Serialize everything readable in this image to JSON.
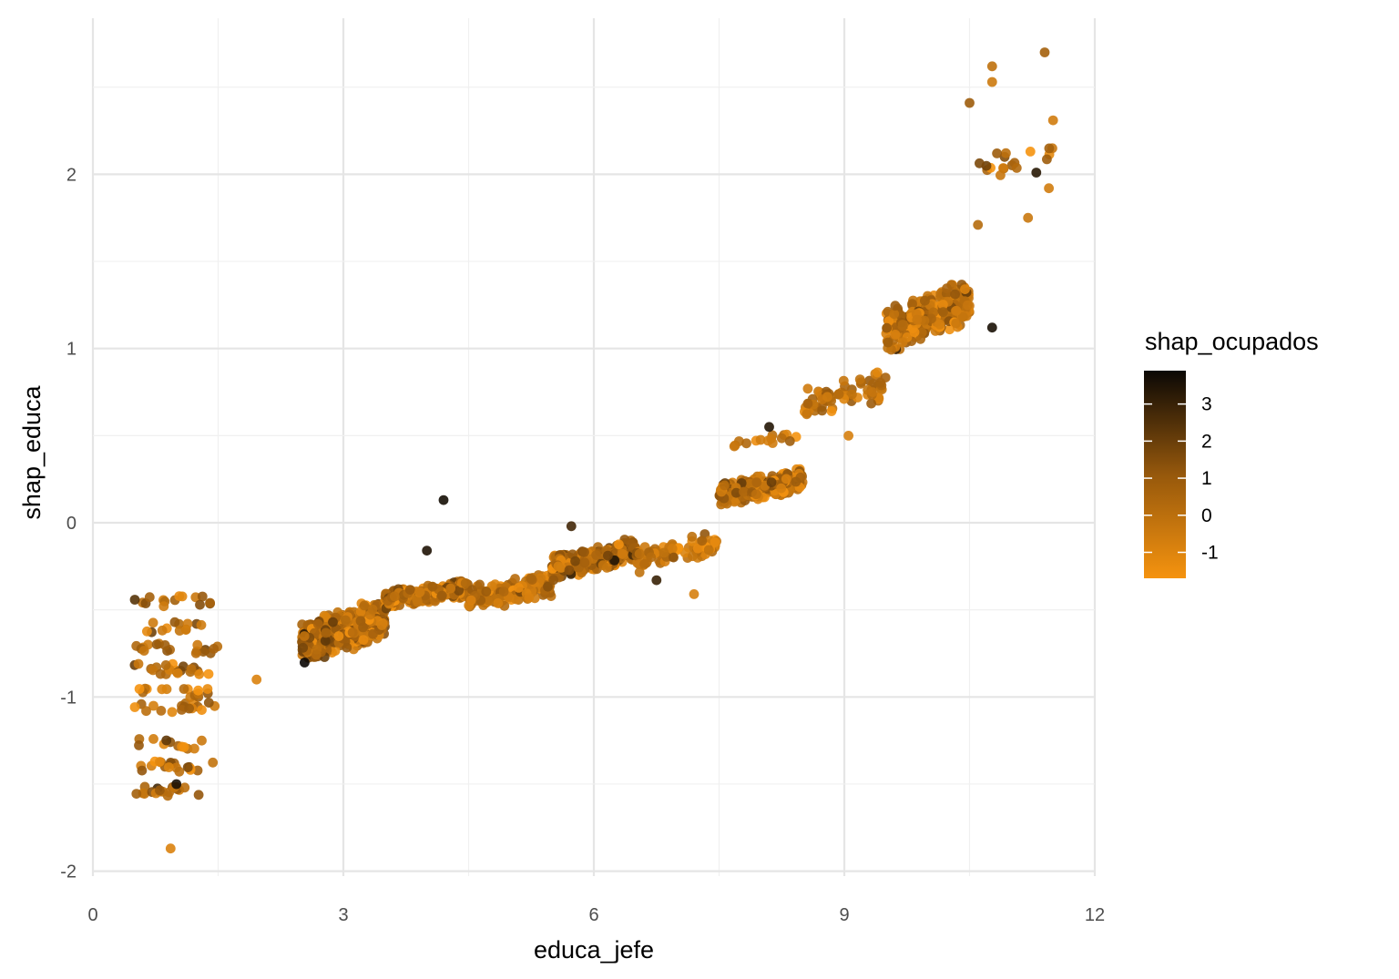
{
  "chart_data": {
    "type": "scatter",
    "title": "",
    "xlabel": "educa_jefe",
    "ylabel": "shap_educa",
    "xlim": [
      0,
      12
    ],
    "ylim": [
      -2,
      2.85
    ],
    "x_ticks": [
      0,
      3,
      6,
      9,
      12
    ],
    "x_tick_labels": [
      "0",
      "3",
      "6",
      "9",
      "12"
    ],
    "y_ticks": [
      -2,
      -1,
      0,
      1,
      2
    ],
    "y_tick_labels": [
      "-2",
      "-1",
      "0",
      "1",
      "2"
    ],
    "grid": true,
    "color": {
      "variable": "shap_ocupados",
      "range": [
        -1.7,
        3.9
      ],
      "low_color": "#f5930f",
      "high_color": "#0b0805",
      "legend_ticks": [
        3,
        2,
        1,
        0,
        -1
      ],
      "legend_tick_labels": [
        "3",
        "2",
        "1",
        "0",
        "-1"
      ],
      "legend_position": "right"
    },
    "notable_points": [
      {
        "x": 0.93,
        "y": -1.87,
        "color_value": -0.9
      },
      {
        "x": 1.0,
        "y": -1.5,
        "color_value": 3.6
      },
      {
        "x": 1.96,
        "y": -0.9,
        "color_value": -0.9
      },
      {
        "x": 4.2,
        "y": 0.13,
        "color_value": 3.7
      },
      {
        "x": 7.2,
        "y": -0.41,
        "color_value": -0.8
      },
      {
        "x": 10.77,
        "y": 1.12,
        "color_value": 3.6
      },
      {
        "x": 11.4,
        "y": 2.7,
        "color_value": 0.7
      },
      {
        "x": 10.77,
        "y": 2.62,
        "color_value": -0.1
      },
      {
        "x": 10.77,
        "y": 2.53,
        "color_value": -0.5
      },
      {
        "x": 10.5,
        "y": 2.41,
        "color_value": 0.9
      },
      {
        "x": 11.5,
        "y": 2.31,
        "color_value": -0.6
      },
      {
        "x": 11.3,
        "y": 2.01,
        "color_value": 3.3
      },
      {
        "x": 11.2,
        "y": 1.75,
        "color_value": -0.4
      },
      {
        "x": 10.6,
        "y": 1.71,
        "color_value": 0.2
      },
      {
        "x": 11.45,
        "y": 1.92,
        "color_value": -0.6
      },
      {
        "x": 8.1,
        "y": 0.55,
        "color_value": 3.4
      },
      {
        "x": 9.05,
        "y": 0.5,
        "color_value": -0.8
      },
      {
        "x": 5.73,
        "y": -0.02,
        "color_value": 2.8
      },
      {
        "x": 4.0,
        "y": -0.16,
        "color_value": 3.5
      },
      {
        "x": 6.75,
        "y": -0.33,
        "color_value": 3.0
      }
    ],
    "clusters": [
      {
        "x_range": [
          0.5,
          1.5
        ],
        "y_range": [
          -1.55,
          -0.33
        ],
        "n": 150,
        "color_mean": 0.0,
        "color_sd": 1.1,
        "y_bands": [
          -0.45,
          -0.6,
          -0.72,
          -0.84,
          -0.98,
          -1.06,
          -1.27,
          -1.4,
          -1.54
        ]
      },
      {
        "x_range": [
          2.5,
          3.5
        ],
        "y_range": [
          -0.88,
          -0.36
        ],
        "n": 500,
        "color_mean": 0.3,
        "color_sd": 1.0
      },
      {
        "x_range": [
          3.5,
          4.5
        ],
        "y_range": [
          -0.52,
          -0.3
        ],
        "n": 260,
        "color_mean": 0.0,
        "color_sd": 0.9
      },
      {
        "x_range": [
          4.5,
          5.5
        ],
        "y_range": [
          -0.56,
          -0.23
        ],
        "n": 170,
        "color_mean": -0.2,
        "color_sd": 0.8
      },
      {
        "x_range": [
          5.5,
          6.5
        ],
        "y_range": [
          -0.37,
          -0.05
        ],
        "n": 220,
        "color_mean": 0.2,
        "color_sd": 1.0
      },
      {
        "x_range": [
          6.5,
          7.5
        ],
        "y_range": [
          -0.33,
          0.0
        ],
        "n": 80,
        "color_mean": -0.3,
        "color_sd": 0.8
      },
      {
        "x_range": [
          7.5,
          8.5
        ],
        "y_range": [
          0.05,
          0.35
        ],
        "n": 320,
        "color_mean": 0.1,
        "color_sd": 0.9
      },
      {
        "x_range": [
          7.5,
          8.5
        ],
        "y_range": [
          0.38,
          0.55
        ],
        "n": 15,
        "color_mean": 0.0,
        "color_sd": 0.9
      },
      {
        "x_range": [
          8.5,
          9.5
        ],
        "y_range": [
          0.55,
          0.93
        ],
        "n": 70,
        "color_mean": -0.1,
        "color_sd": 0.8
      },
      {
        "x_range": [
          9.5,
          10.5
        ],
        "y_range": [
          0.91,
          1.46
        ],
        "n": 300,
        "color_mean": 0.0,
        "color_sd": 0.9
      },
      {
        "x_range": [
          10.5,
          11.5
        ],
        "y_range": [
          1.9,
          2.25
        ],
        "n": 18,
        "color_mean": 0.2,
        "color_sd": 0.9
      }
    ]
  }
}
